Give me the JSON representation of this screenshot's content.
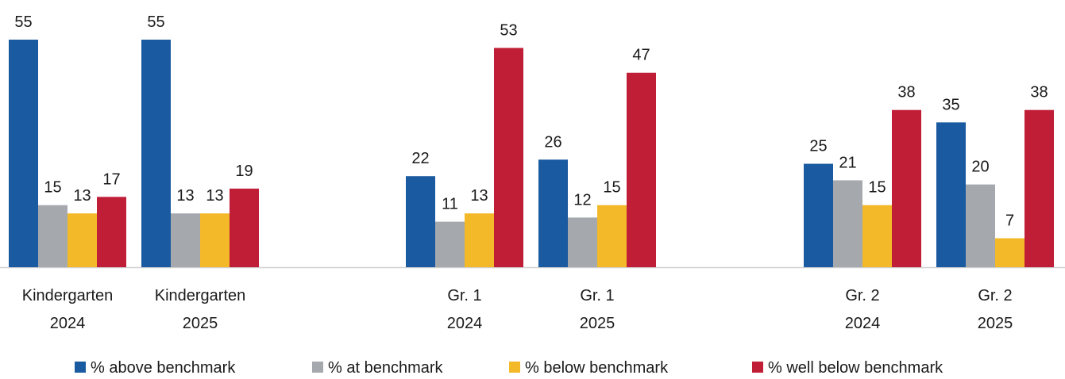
{
  "chart_data": {
    "type": "bar",
    "categories": [
      [
        "Kindergarten",
        "2024"
      ],
      [
        "Kindergarten",
        "2025"
      ],
      [
        "Gr. 1",
        "2024"
      ],
      [
        "Gr. 1",
        "2025"
      ],
      [
        "Gr. 2",
        "2024"
      ],
      [
        "Gr. 2",
        "2025"
      ]
    ],
    "series": [
      {
        "name": "% above benchmark",
        "color": "#1a5aa0",
        "values": [
          55,
          55,
          22,
          26,
          25,
          35
        ]
      },
      {
        "name": "% at benchmark",
        "color": "#a5a9ae",
        "values": [
          15,
          13,
          11,
          12,
          21,
          20
        ]
      },
      {
        "name": "% below benchmark",
        "color": "#f3b929",
        "values": [
          13,
          13,
          13,
          15,
          15,
          7
        ]
      },
      {
        "name": "% well below benchmark",
        "color": "#c01e36",
        "values": [
          17,
          19,
          53,
          47,
          38,
          38
        ]
      }
    ],
    "title": "",
    "xlabel": "",
    "ylabel": "",
    "ylim": [
      0,
      55
    ],
    "grid": false,
    "legend_position": "bottom",
    "axis_color": "#d0d0d0"
  }
}
